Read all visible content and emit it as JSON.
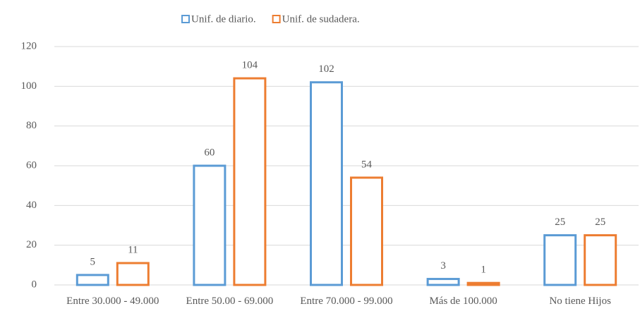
{
  "chart_data": {
    "type": "bar",
    "categories": [
      "Entre 30.000 - 49.000",
      "Entre 50.00 - 69.000",
      "Entre 70.000 - 99.000",
      "Más de 100.000",
      "No tiene Hijos"
    ],
    "series": [
      {
        "name": "Unif. de diario.",
        "color": "#5b9bd5",
        "values": [
          5,
          60,
          102,
          3,
          25
        ]
      },
      {
        "name": "Unif. de sudadera.",
        "color": "#ed7d31",
        "values": [
          11,
          104,
          54,
          1,
          25
        ]
      }
    ],
    "ylim": [
      0,
      120
    ],
    "yticks": [
      0,
      20,
      40,
      60,
      80,
      100,
      120
    ],
    "grid": true,
    "legend": "top"
  }
}
